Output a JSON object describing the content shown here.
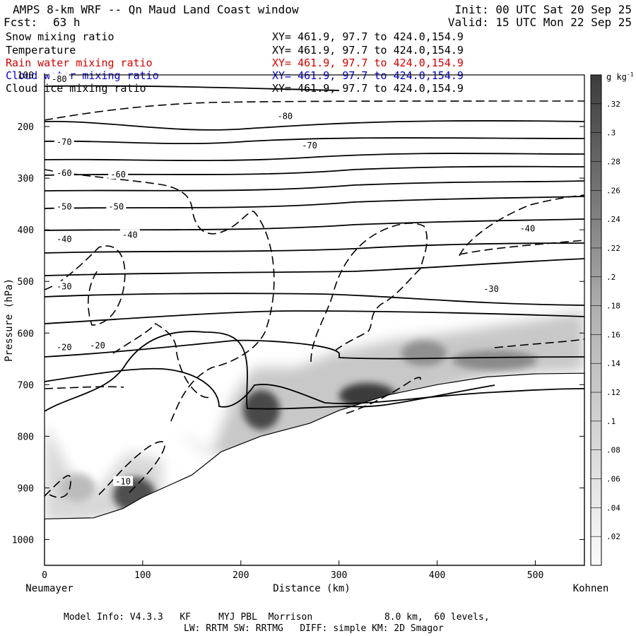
{
  "header": {
    "title": "AMPS 8-km WRF -- Qn Maud Land Coast window",
    "fcst_label": "Fcst:",
    "fcst_value": "63 h",
    "init": "Init: 00 UTC Sat 20 Sep 25",
    "valid": "Valid: 15 UTC Mon 22 Sep 25"
  },
  "fields": [
    {
      "name": "Snow mixing ratio",
      "xy": "XY= 461.9, 97.7 to 424.0,154.9",
      "color": "#000000"
    },
    {
      "name": "Temperature",
      "xy": "XY= 461.9, 97.7 to 424.0,154.9",
      "color": "#000000"
    },
    {
      "name": "Rain water mixing ratio",
      "xy": "XY= 461.9, 97.7 to 424.0,154.9",
      "color": "#d40000"
    },
    {
      "name": "Cloud water mixing ratio",
      "xy": "XY= 461.9, 97.7 to 424.0,154.9",
      "color": "#0000c8"
    },
    {
      "name": "Cloud ice mixing ratio",
      "xy": "XY= 461.9, 97.7 to 424.0,154.9",
      "color": "#000000"
    }
  ],
  "chart_data": {
    "type": "heatmap",
    "title": "AMPS 8-km WRF -- Qn Maud Land Coast window",
    "xlabel": "Distance (km)",
    "ylabel": "Pressure (hPa)",
    "xlim": [
      0,
      550
    ],
    "ylim": [
      1050,
      100
    ],
    "x_ticks": [
      0,
      100,
      200,
      300,
      400,
      500
    ],
    "y_ticks": [
      100,
      200,
      300,
      400,
      500,
      600,
      700,
      800,
      900,
      1000
    ],
    "left_endpoint": "Neumayer",
    "right_endpoint": "Kohnen",
    "colorbar": {
      "unit": "g kg",
      "unit_exp": "-1",
      "ticks": [
        ".02",
        ".04",
        ".06",
        ".08",
        ".1",
        ".12",
        ".14",
        ".16",
        ".18",
        ".2",
        ".22",
        ".24",
        ".26",
        ".28",
        ".3",
        ".32"
      ],
      "range": [
        0,
        0.34
      ]
    },
    "temperature_labels": [
      {
        "value": "-80",
        "x": 15,
        "p": 108
      },
      {
        "value": "-80",
        "x": 245,
        "p": 180
      },
      {
        "value": "-70",
        "x": 20,
        "p": 230
      },
      {
        "value": "-70",
        "x": 270,
        "p": 237
      },
      {
        "value": "-60",
        "x": 20,
        "p": 290
      },
      {
        "value": "-60",
        "x": 75,
        "p": 293
      },
      {
        "value": "-50",
        "x": 20,
        "p": 355
      },
      {
        "value": "-50",
        "x": 73,
        "p": 355
      },
      {
        "value": "-40",
        "x": 20,
        "p": 418
      },
      {
        "value": "-40",
        "x": 87,
        "p": 410
      },
      {
        "value": "-40",
        "x": 492,
        "p": 398
      },
      {
        "value": "-30",
        "x": 20,
        "p": 510
      },
      {
        "value": "-30",
        "x": 455,
        "p": 515
      },
      {
        "value": "-20",
        "x": 20,
        "p": 628
      },
      {
        "value": "-20",
        "x": 54,
        "p": 624
      },
      {
        "value": "-10",
        "x": 80,
        "p": 888
      }
    ],
    "terrain_profile": [
      [
        0,
        960
      ],
      [
        50,
        958
      ],
      [
        80,
        940
      ],
      [
        100,
        918
      ],
      [
        150,
        875
      ],
      [
        180,
        830
      ],
      [
        220,
        800
      ],
      [
        270,
        775
      ],
      [
        300,
        750
      ],
      [
        350,
        720
      ],
      [
        400,
        700
      ],
      [
        450,
        685
      ],
      [
        500,
        679
      ],
      [
        550,
        678
      ]
    ],
    "temperature_isotherms_p_at_left": [
      180,
      225,
      265,
      300,
      345,
      385,
      430,
      480,
      535,
      600,
      650,
      755
    ],
    "snow_max_locations": [
      {
        "x": 95,
        "p": 925,
        "q": 0.24
      },
      {
        "x": 205,
        "p": 775,
        "q": 0.26
      },
      {
        "x": 305,
        "p": 730,
        "q": 0.3
      },
      {
        "x": 390,
        "p": 665,
        "q": 0.18
      },
      {
        "x": 480,
        "p": 665,
        "q": 0.16
      }
    ]
  },
  "footer": {
    "line1": "Model Info: V4.3.3   KF     MYJ PBL  Morrison             8.0 km,  60 levels,",
    "line2": "LW: RRTM SW: RRTMG   DIFF: simple KM: 2D Smagor"
  }
}
